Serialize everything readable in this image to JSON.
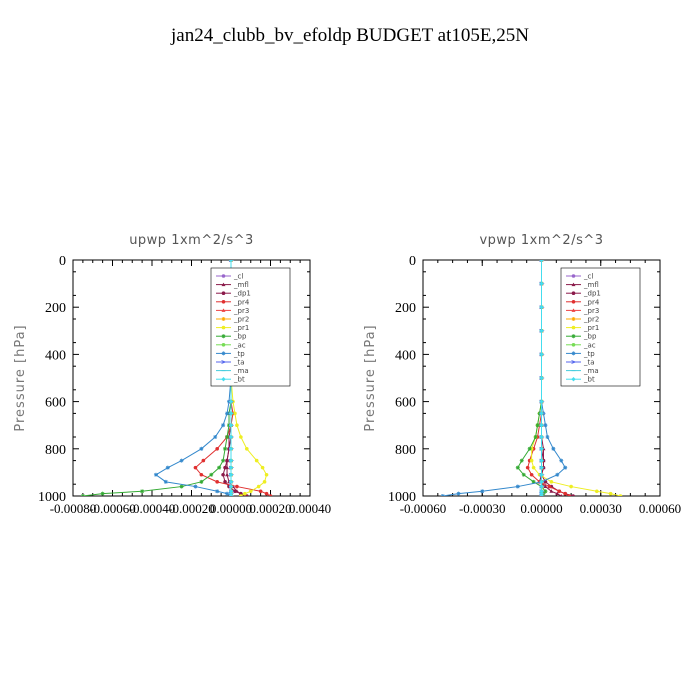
{
  "title": "jan24_clubb_bv_efoldp  BUDGET at105E,25N",
  "legend_entries": [
    {
      "label": "_cl",
      "color": "#9966cc",
      "marker": "dot"
    },
    {
      "label": "_mfl",
      "color": "#8b1a4a",
      "marker": "tri"
    },
    {
      "label": "_dp1",
      "color": "#8b1a4a",
      "marker": "dot"
    },
    {
      "label": "_pr4",
      "color": "#e03030",
      "marker": "dot"
    },
    {
      "label": "_pr3",
      "color": "#ee4444",
      "marker": "tri"
    },
    {
      "label": "_pr2",
      "color": "#ffaa00",
      "marker": "star"
    },
    {
      "label": "_pr1",
      "color": "#eeee22",
      "marker": "dot"
    },
    {
      "label": "_bp",
      "color": "#33aa33",
      "marker": "star"
    },
    {
      "label": "_ac",
      "color": "#77dd55",
      "marker": "dot"
    },
    {
      "label": "_tp",
      "color": "#3388cc",
      "marker": "star"
    },
    {
      "label": "_ta",
      "color": "#5566ee",
      "marker": "arrow"
    },
    {
      "label": "_ma",
      "color": "#44ccdd",
      "marker": "line"
    },
    {
      "label": "_bt",
      "color": "#44ddee",
      "marker": "diamond"
    }
  ],
  "chart_data": [
    {
      "type": "line",
      "title": "upwp   1xm^2/s^3",
      "ylabel": "Pressure [hPa]",
      "xlabel": "",
      "xlim": [
        -0.0008,
        0.0004
      ],
      "ylim": [
        1000,
        0
      ],
      "x_ticks": [
        "-0.00080",
        "-0.00060",
        "-0.00040",
        "-0.00020",
        "0.00000",
        "0.00020",
        "0.00040"
      ],
      "y_ticks": [
        "0",
        "200",
        "400",
        "600",
        "800",
        "1000"
      ],
      "legend_position": "top-right",
      "y": [
        0,
        100,
        200,
        300,
        400,
        500,
        600,
        650,
        700,
        750,
        800,
        850,
        880,
        910,
        940,
        960,
        980,
        990,
        1000
      ],
      "series": [
        {
          "name": "_cl",
          "values": [
            0,
            0,
            0,
            0,
            0,
            0,
            0,
            0,
            0,
            0,
            0,
            0,
            0,
            0,
            0,
            0,
            0,
            0,
            0
          ]
        },
        {
          "name": "_mfl",
          "values": [
            0,
            0,
            0,
            0,
            0,
            0,
            0,
            0,
            0,
            -1e-05,
            -1e-05,
            -2e-05,
            -2e-05,
            -2e-05,
            -1e-05,
            1e-05,
            3e-05,
            5e-05,
            7e-05
          ]
        },
        {
          "name": "_dp1",
          "values": [
            0,
            0,
            0,
            0,
            0,
            0,
            0,
            0,
            0,
            0,
            -1e-05,
            -2e-05,
            -3e-05,
            -4e-05,
            -3e-05,
            -1e-05,
            2e-05,
            5e-05,
            8e-05
          ]
        },
        {
          "name": "_pr4",
          "values": [
            0,
            0,
            0,
            0,
            0,
            0,
            0,
            1e-05,
            0,
            -2e-05,
            -7e-05,
            -0.00014,
            -0.00018,
            -0.00015,
            -7e-05,
            3e-05,
            0.00015,
            0.00018,
            0.0002
          ]
        },
        {
          "name": "_pr3",
          "values": [
            0,
            0,
            0,
            0,
            0,
            0,
            0,
            0,
            0,
            0,
            0,
            0,
            0,
            0,
            0,
            0,
            0,
            0,
            0
          ]
        },
        {
          "name": "_pr2",
          "values": [
            0,
            0,
            0,
            0,
            0,
            0,
            0,
            0,
            0,
            0,
            0,
            0,
            0,
            0,
            0,
            0,
            0,
            0,
            0
          ]
        },
        {
          "name": "_pr1",
          "values": [
            0,
            0,
            0,
            0,
            0,
            0,
            1e-05,
            2e-05,
            3e-05,
            5e-05,
            8e-05,
            0.00013,
            0.00016,
            0.00018,
            0.00017,
            0.00014,
            0.0001,
            7e-05,
            5e-05
          ]
        },
        {
          "name": "_bp",
          "values": [
            0,
            0,
            0,
            0,
            0,
            0,
            0,
            -1e-05,
            -1e-05,
            -2e-05,
            -3e-05,
            -4e-05,
            -6e-05,
            -0.0001,
            -0.00015,
            -0.00025,
            -0.00045,
            -0.00065,
            -0.00075
          ]
        },
        {
          "name": "_ac",
          "values": [
            0,
            0,
            0,
            0,
            0,
            0,
            0,
            0,
            0,
            0,
            0,
            0,
            0,
            0,
            0,
            0,
            0,
            0,
            0
          ]
        },
        {
          "name": "_tp",
          "values": [
            0,
            0,
            0,
            0,
            0,
            0,
            -1e-05,
            -2e-05,
            -4e-05,
            -8e-05,
            -0.00015,
            -0.00025,
            -0.00032,
            -0.00038,
            -0.00033,
            -0.00018,
            -7e-05,
            -2e-05,
            0
          ]
        },
        {
          "name": "_ta",
          "values": [
            0,
            0,
            0,
            0,
            0,
            0,
            0,
            0,
            0,
            0,
            0,
            0,
            0,
            0,
            0,
            0,
            0,
            0,
            0
          ]
        },
        {
          "name": "_ma",
          "values": [
            0,
            0,
            0,
            0,
            0,
            0,
            0,
            0,
            0,
            0,
            0,
            0,
            0,
            0,
            0,
            0,
            0,
            0,
            0
          ]
        },
        {
          "name": "_bt",
          "values": [
            0,
            0,
            0,
            0,
            0,
            0,
            0,
            0,
            0,
            0,
            0,
            0,
            0,
            0,
            0,
            0,
            0,
            0,
            0
          ]
        }
      ]
    },
    {
      "type": "line",
      "title": "vpwp   1xm^2/s^3",
      "ylabel": "Pressure [hPa]",
      "xlabel": "",
      "xlim": [
        -0.0006,
        0.0006
      ],
      "ylim": [
        1000,
        0
      ],
      "x_ticks": [
        "-0.00060",
        "-0.00030",
        "0.00000",
        "0.00030",
        "0.00060"
      ],
      "y_ticks": [
        "0",
        "200",
        "400",
        "600",
        "800",
        "1000"
      ],
      "legend_position": "top-right",
      "y": [
        0,
        100,
        200,
        300,
        400,
        500,
        600,
        650,
        700,
        750,
        800,
        850,
        880,
        910,
        940,
        960,
        980,
        990,
        1000
      ],
      "series": [
        {
          "name": "_cl",
          "values": [
            0,
            0,
            0,
            0,
            0,
            0,
            0,
            0,
            0,
            0,
            0,
            0,
            0,
            0,
            0,
            0,
            0,
            0,
            0
          ]
        },
        {
          "name": "_mfl",
          "values": [
            0,
            0,
            0,
            0,
            0,
            0,
            0,
            0,
            0,
            0,
            1e-05,
            1e-05,
            1e-05,
            0,
            -1e-05,
            2e-05,
            5e-05,
            8e-05,
            0.0001
          ]
        },
        {
          "name": "_dp1",
          "values": [
            0,
            0,
            0,
            0,
            0,
            0,
            0,
            0,
            0,
            0,
            0,
            1e-05,
            1e-05,
            0,
            2e-05,
            5e-05,
            9e-05,
            0.00012,
            0.00016
          ]
        },
        {
          "name": "_pr4",
          "values": [
            0,
            0,
            0,
            0,
            0,
            0,
            0,
            0,
            -1e-05,
            -2e-05,
            -4e-05,
            -6e-05,
            -7e-05,
            -5e-05,
            -1e-05,
            4e-05,
            9e-05,
            0.00012,
            0.00014
          ]
        },
        {
          "name": "_pr3",
          "values": [
            0,
            0,
            0,
            0,
            0,
            0,
            0,
            0,
            0,
            0,
            0,
            0,
            0,
            0,
            0,
            0,
            0,
            0,
            0
          ]
        },
        {
          "name": "_pr2",
          "values": [
            0,
            0,
            0,
            0,
            0,
            0,
            0,
            0,
            0,
            0,
            0,
            0,
            0,
            0,
            0,
            0,
            0,
            0,
            0
          ]
        },
        {
          "name": "_pr1",
          "values": [
            0,
            0,
            0,
            0,
            0,
            0,
            0,
            -1e-05,
            -2e-05,
            -3e-05,
            -5e-05,
            -5e-05,
            -4e-05,
            -1e-05,
            5e-05,
            0.00015,
            0.00028,
            0.00035,
            0.0004
          ]
        },
        {
          "name": "_bp",
          "values": [
            0,
            0,
            0,
            0,
            0,
            0,
            0,
            -1e-05,
            -2e-05,
            -3e-05,
            -6e-05,
            -0.0001,
            -0.00012,
            -9e-05,
            -4e-05,
            0,
            2e-05,
            1e-05,
            0
          ]
        },
        {
          "name": "_ac",
          "values": [
            0,
            0,
            0,
            0,
            0,
            0,
            0,
            0,
            0,
            0,
            0,
            0,
            0,
            0,
            0,
            0,
            0,
            0,
            0
          ]
        },
        {
          "name": "_tp",
          "values": [
            0,
            0,
            0,
            0,
            0,
            0,
            0,
            1e-05,
            2e-05,
            3e-05,
            6e-05,
            0.0001,
            0.00012,
            8e-05,
            0,
            -0.00012,
            -0.0003,
            -0.00042,
            -0.0005
          ]
        },
        {
          "name": "_ta",
          "values": [
            0,
            0,
            0,
            0,
            0,
            0,
            0,
            0,
            0,
            0,
            0,
            0,
            0,
            0,
            0,
            0,
            0,
            0,
            0
          ]
        },
        {
          "name": "_ma",
          "values": [
            0,
            0,
            0,
            0,
            0,
            0,
            0,
            0,
            0,
            0,
            0,
            0,
            0,
            0,
            0,
            0,
            0,
            0,
            0
          ]
        },
        {
          "name": "_bt",
          "values": [
            0,
            0,
            0,
            0,
            0,
            0,
            0,
            0,
            0,
            0,
            0,
            0,
            0,
            0,
            0,
            0,
            0,
            0,
            0
          ]
        }
      ]
    }
  ]
}
